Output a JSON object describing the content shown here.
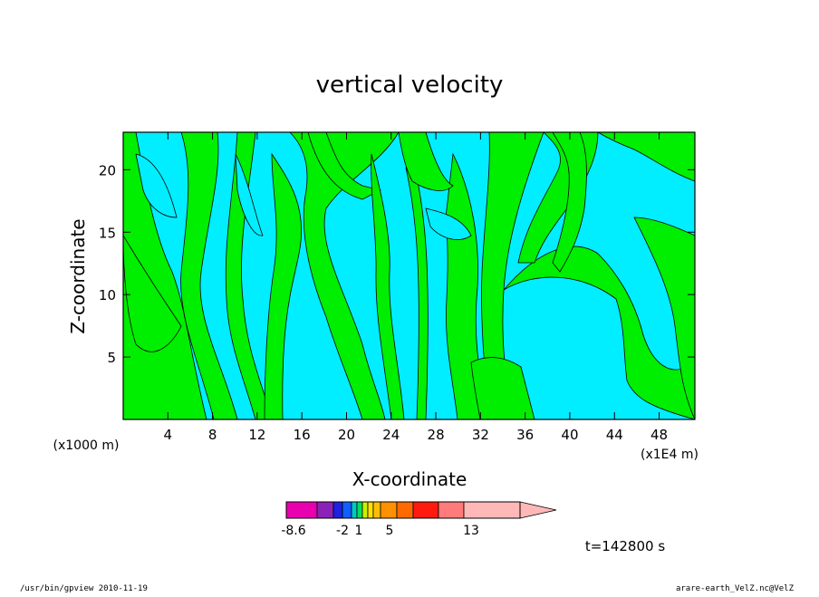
{
  "chart_data": {
    "type": "heatmap",
    "title": "vertical velocity",
    "xlabel": "X-coordinate",
    "ylabel": "Z-coordinate",
    "xunit": "(x1E4 m)",
    "yunit": "(x1000 m)",
    "x_ticks": [
      4,
      8,
      12,
      16,
      20,
      24,
      28,
      32,
      36,
      40,
      44,
      48
    ],
    "y_ticks": [
      5,
      10,
      15,
      20
    ],
    "xlim": [
      0,
      51.2
    ],
    "ylim": [
      0,
      23
    ],
    "colorbar": {
      "levels": [
        -8.6,
        -2,
        1,
        5,
        13
      ],
      "colors": [
        "#e800b0",
        "#8a22b8",
        "#2020e0",
        "#1060ff",
        "#00c8c8",
        "#00e060",
        "#c8f000",
        "#ffe000",
        "#ffc000",
        "#ff9000",
        "#ff6a00",
        "#ff1a10",
        "#ff7a7a",
        "#ffb8b8"
      ]
    },
    "fill_colors": {
      "negative": "#00eeff",
      "positive": "#00ee00"
    },
    "time_label": "t=142800 s"
  },
  "footer": {
    "left": "/usr/bin/gpview   2010-11-19",
    "right": "arare-earth_VelZ.nc@VelZ"
  }
}
